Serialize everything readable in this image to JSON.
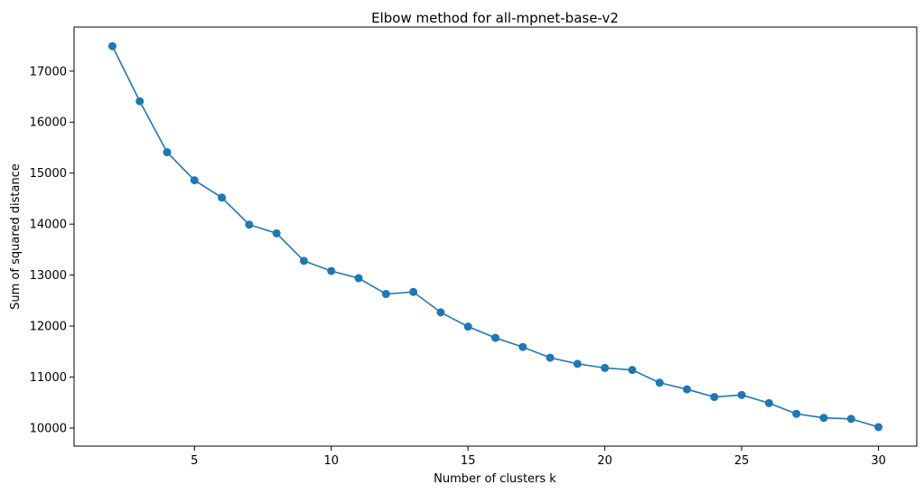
{
  "chart_data": {
    "type": "line",
    "title": "Elbow method for all-mpnet-base-v2",
    "xlabel": "Number of clusters k",
    "ylabel": "Sum of squared distance",
    "x": [
      2,
      3,
      4,
      5,
      6,
      7,
      8,
      9,
      10,
      11,
      12,
      13,
      14,
      15,
      16,
      17,
      18,
      19,
      20,
      21,
      22,
      23,
      24,
      25,
      26,
      27,
      28,
      29,
      30
    ],
    "series": [
      {
        "values": [
          17490,
          16410,
          15410,
          14860,
          14520,
          13990,
          13820,
          13280,
          13080,
          12940,
          12630,
          12670,
          12270,
          11990,
          11770,
          11590,
          11380,
          11260,
          11180,
          11140,
          10890,
          10760,
          10610,
          10650,
          10490,
          10280,
          10200,
          10180,
          10020
        ]
      }
    ],
    "xlim": [
      0.6,
      31.4
    ],
    "ylim": [
      9646,
      17864
    ],
    "xticks": [
      "5",
      "10",
      "15",
      "20",
      "25",
      "30"
    ],
    "yticks": [
      "10000",
      "11000",
      "12000",
      "13000",
      "14000",
      "15000",
      "16000",
      "17000"
    ],
    "grid": false,
    "legend": "none",
    "colors": {
      "line": "#1f77b4",
      "marker": "#1f77b4",
      "axes": "#000000"
    },
    "marker": "circle"
  }
}
